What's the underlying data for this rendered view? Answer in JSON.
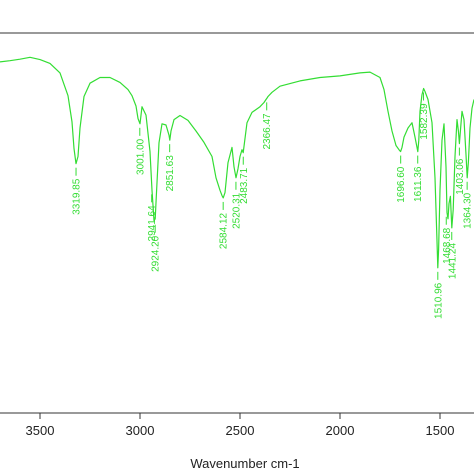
{
  "chart_data": {
    "type": "line",
    "title": "",
    "xlabel": "Wavenumber cm-1",
    "ylabel": "",
    "xlim": [
      3700,
      1330
    ],
    "ylim": [
      0,
      100
    ],
    "x_reversed": true,
    "grid": false,
    "line_color": "#33dd33",
    "axis_color": "#333333",
    "x_ticks": [
      {
        "value": 3500,
        "label": "3500"
      },
      {
        "value": 3000,
        "label": "3000"
      },
      {
        "value": 2500,
        "label": "2500"
      },
      {
        "value": 2000,
        "label": "2000"
      },
      {
        "value": 1500,
        "label": "1500"
      }
    ],
    "series": [
      {
        "x": [
          3700,
          3650,
          3600,
          3550,
          3500,
          3450,
          3400,
          3360,
          3340,
          3330,
          3320,
          3310,
          3300,
          3280,
          3250,
          3200,
          3150,
          3100,
          3060,
          3040,
          3020,
          3010,
          3000,
          2990,
          2970,
          2950,
          2940,
          2930,
          2924,
          2918,
          2905,
          2890,
          2870,
          2855,
          2851,
          2845,
          2830,
          2800,
          2760,
          2720,
          2680,
          2640,
          2620,
          2600,
          2590,
          2584,
          2575,
          2560,
          2540,
          2530,
          2520,
          2510,
          2500,
          2490,
          2484,
          2478,
          2465,
          2440,
          2400,
          2380,
          2370,
          2366,
          2360,
          2340,
          2300,
          2200,
          2100,
          2000,
          1950,
          1900,
          1850,
          1800,
          1780,
          1760,
          1740,
          1720,
          1705,
          1697,
          1690,
          1680,
          1660,
          1640,
          1625,
          1615,
          1611,
          1606,
          1600,
          1590,
          1582,
          1575,
          1560,
          1540,
          1525,
          1515,
          1511,
          1507,
          1500,
          1490,
          1480,
          1470,
          1465,
          1460,
          1455,
          1448,
          1441,
          1434,
          1425,
          1415,
          1408,
          1403,
          1398,
          1390,
          1380,
          1370,
          1364,
          1358,
          1350,
          1340,
          1330
        ],
        "y": [
          92.4,
          92.7,
          93.1,
          93.6,
          93.0,
          92.0,
          89.5,
          83.5,
          76.6,
          69.6,
          65.6,
          67.5,
          75.0,
          83.3,
          86.8,
          88.3,
          88.3,
          87.0,
          85.1,
          83.5,
          80.8,
          77.5,
          76.1,
          80.6,
          78.4,
          68.8,
          58.6,
          50.6,
          51.1,
          57.5,
          71.1,
          76.1,
          75.8,
          73.1,
          71.8,
          74.2,
          77.2,
          78.3,
          77.0,
          74.2,
          71.2,
          67.5,
          61.9,
          58.6,
          57.2,
          56.6,
          58.0,
          65.9,
          69.9,
          64.8,
          61.9,
          64.3,
          67.5,
          69.3,
          68.5,
          71.0,
          76.4,
          79.1,
          80.6,
          81.7,
          82.5,
          82.8,
          83.3,
          84.4,
          86.0,
          87.4,
          88.3,
          88.7,
          89.1,
          89.5,
          89.7,
          88.3,
          85.1,
          79.4,
          74.2,
          70.4,
          69.3,
          68.8,
          69.9,
          72.6,
          75.0,
          76.4,
          72.6,
          69.9,
          68.8,
          71.8,
          79.4,
          83.8,
          85.4,
          84.6,
          82.5,
          76.4,
          61.9,
          45.2,
          38.2,
          43.0,
          58.6,
          71.8,
          76.1,
          64.8,
          52.7,
          51.1,
          55.1,
          57.0,
          48.7,
          53.5,
          67.5,
          77.2,
          74.2,
          70.9,
          74.2,
          79.4,
          77.2,
          68.0,
          61.9,
          66.1,
          75.0,
          80.2,
          82.5
        ]
      }
    ],
    "peaks": [
      {
        "x": 3319.85,
        "label": "3319.85",
        "y": 65.6
      },
      {
        "x": 3001.0,
        "label": "3001.00",
        "y": 76.1
      },
      {
        "x": 2941.64,
        "label": "2941.64",
        "y": 58.6
      },
      {
        "x": 2924.2,
        "label": "2924.20",
        "y": 50.6
      },
      {
        "x": 2851.63,
        "label": "2851.63",
        "y": 71.8
      },
      {
        "x": 2584.12,
        "label": "2584.12",
        "y": 56.6
      },
      {
        "x": 2520.31,
        "label": "2520.31",
        "y": 61.9
      },
      {
        "x": 2483.71,
        "label": "2483.71",
        "y": 68.5
      },
      {
        "x": 2366.47,
        "label": "2366.47",
        "y": 82.8
      },
      {
        "x": 1696.6,
        "label": "1696.60",
        "y": 68.8
      },
      {
        "x": 1611.36,
        "label": "1611.36",
        "y": 68.8
      },
      {
        "x": 1582.39,
        "label": "1582.39",
        "y": 85.4
      },
      {
        "x": 1510.96,
        "label": "1510.96",
        "y": 38.2
      },
      {
        "x": 1468.68,
        "label": "1468.68",
        "y": 52.7
      },
      {
        "x": 1441.24,
        "label": "1441.24",
        "y": 48.7
      },
      {
        "x": 1403.06,
        "label": "1403.06",
        "y": 70.9
      },
      {
        "x": 1364.3,
        "label": "1364.30",
        "y": 61.9
      }
    ]
  }
}
